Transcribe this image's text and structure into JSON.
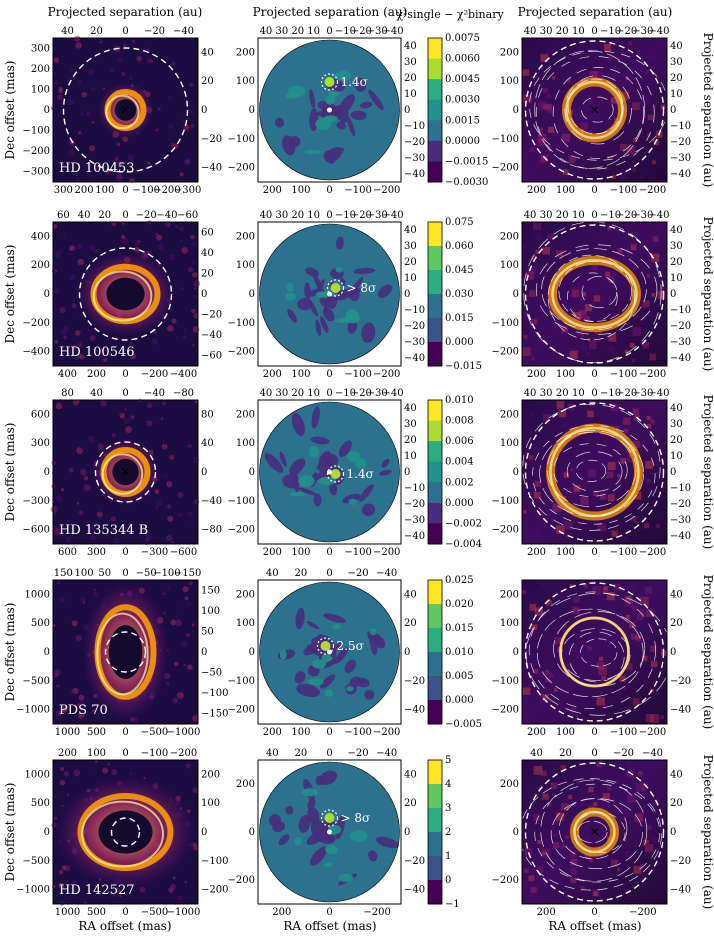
{
  "column_headers": {
    "left": "Projected separation (au)",
    "middle": "Projected separation (au)",
    "colorbar": "χ²single − χ²binary"
  },
  "axis_labels": {
    "dec": "Dec offset (mas)",
    "ra": "RA offset (mas)",
    "right_sep": "Projected separation (au)"
  },
  "palette": {
    "viridis": [
      "#440154",
      "#472d7b",
      "#3b528b",
      "#2c728e",
      "#21918c",
      "#28ae80",
      "#5ec962",
      "#addc30",
      "#fde725"
    ],
    "inferno": [
      "#000004",
      "#1b0c41",
      "#4a0c6b",
      "#781c6d",
      "#a52c60",
      "#cf4446",
      "#ed6925",
      "#fb9b06",
      "#f7d13d",
      "#fcffa4"
    ]
  },
  "rows": [
    {
      "object": "HD 100453",
      "significance": "1.4σ",
      "left_bottom_ticks": [
        "300",
        "200",
        "100",
        "0",
        "−100",
        "−200",
        "−300"
      ],
      "left_left_ticks": [
        "300",
        "200",
        "100",
        "0",
        "−100",
        "−200",
        "−300"
      ],
      "left_top_ticks": [
        "40",
        "20",
        "0",
        "−20",
        "−40"
      ],
      "left_right_ticks": [
        "40",
        "20",
        "0",
        "−20",
        "−40"
      ],
      "mid_left_ticks": [
        "200",
        "100",
        "0",
        "−100",
        "−200"
      ],
      "mid_bottom_ticks": [
        "200",
        "100",
        "0",
        "−100",
        "−200"
      ],
      "mid_top_ticks": [
        "40",
        "30",
        "20",
        "10",
        "0",
        "−10",
        "−20",
        "−30",
        "−40"
      ],
      "mid_right_ticks": [
        "40",
        "30",
        "20",
        "10",
        "0",
        "−10",
        "−20",
        "−30",
        "−40"
      ],
      "cbar_ticks": [
        "0.0075",
        "0.0060",
        "0.0045",
        "0.0030",
        "0.0015",
        "0.0000",
        "−0.0015",
        "−0.0030"
      ],
      "right_left_ticks": [
        "200",
        "100",
        "0",
        "−100",
        "−200"
      ],
      "right_bottom_ticks": [
        "200",
        "100",
        "0",
        "−100",
        "−200"
      ],
      "right_top_ticks": [
        "40",
        "30",
        "20",
        "10",
        "0",
        "−10",
        "−20",
        "−30",
        "−40"
      ]
    },
    {
      "object": "HD 100546",
      "significance": "> 8σ",
      "left_bottom_ticks": [
        "400",
        "200",
        "0",
        "−200",
        "−400"
      ],
      "left_left_ticks": [
        "400",
        "200",
        "0",
        "−200",
        "−400"
      ],
      "left_top_ticks": [
        "60",
        "40",
        "20",
        "0",
        "−20",
        "−40",
        "−60"
      ],
      "left_right_ticks": [
        "60",
        "40",
        "20",
        "0",
        "−20",
        "−40",
        "−60"
      ],
      "mid_left_ticks": [
        "200",
        "100",
        "0",
        "−100",
        "−200"
      ],
      "mid_bottom_ticks": [
        "200",
        "100",
        "0",
        "−100",
        "−200"
      ],
      "mid_top_ticks": [
        "40",
        "30",
        "20",
        "10",
        "0",
        "−10",
        "−20",
        "−30",
        "−40"
      ],
      "mid_right_ticks": [
        "40",
        "30",
        "20",
        "10",
        "0",
        "−10",
        "−20",
        "−30",
        "−40"
      ],
      "cbar_ticks": [
        "0.075",
        "0.060",
        "0.045",
        "0.030",
        "0.015",
        "0.000",
        "−0.015"
      ],
      "right_left_ticks": [
        "200",
        "100",
        "0",
        "−100",
        "−200"
      ],
      "right_bottom_ticks": [
        "200",
        "100",
        "0",
        "−100",
        "−200"
      ],
      "right_top_ticks": [
        "40",
        "30",
        "20",
        "10",
        "0",
        "−10",
        "−20",
        "−30",
        "−40"
      ]
    },
    {
      "object": "HD 135344 B",
      "significance": "1.4σ",
      "left_bottom_ticks": [
        "600",
        "300",
        "0",
        "−300",
        "−600"
      ],
      "left_left_ticks": [
        "600",
        "300",
        "0",
        "−300",
        "−600"
      ],
      "left_top_ticks": [
        "80",
        "40",
        "0",
        "−40",
        "−80"
      ],
      "left_right_ticks": [
        "80",
        "40",
        "0",
        "−40",
        "−80"
      ],
      "mid_left_ticks": [
        "200",
        "100",
        "0",
        "−100",
        "−200"
      ],
      "mid_bottom_ticks": [
        "200",
        "100",
        "0",
        "−100",
        "−200"
      ],
      "mid_top_ticks": [
        "40",
        "30",
        "20",
        "10",
        "0",
        "−10",
        "−20",
        "−30",
        "−40"
      ],
      "mid_right_ticks": [
        "40",
        "30",
        "20",
        "10",
        "0",
        "−10",
        "−20",
        "−30",
        "−40"
      ],
      "cbar_ticks": [
        "0.010",
        "0.008",
        "0.006",
        "0.004",
        "0.002",
        "0.000",
        "−0.002",
        "−0.004"
      ],
      "right_left_ticks": [
        "200",
        "100",
        "0",
        "−100",
        "−200"
      ],
      "right_bottom_ticks": [
        "200",
        "100",
        "0",
        "−100",
        "−200"
      ],
      "right_top_ticks": [
        "40",
        "30",
        "20",
        "10",
        "0",
        "−10",
        "−20",
        "−30",
        "−40"
      ]
    },
    {
      "object": "PDS 70",
      "significance": "2.5σ",
      "left_bottom_ticks": [
        "1000",
        "500",
        "0",
        "−500",
        "−1000"
      ],
      "left_left_ticks": [
        "1000",
        "500",
        "0",
        "−500",
        "−1000"
      ],
      "left_top_ticks": [
        "150",
        "100",
        "50",
        "0",
        "−50",
        "−100",
        "−150"
      ],
      "left_right_ticks": [
        "150",
        "100",
        "50",
        "0",
        "−50",
        "−100",
        "−150"
      ],
      "mid_left_ticks": [
        "200",
        "100",
        "0",
        "−100",
        "−200"
      ],
      "mid_bottom_ticks": [
        "200",
        "100",
        "0",
        "−100",
        "−200"
      ],
      "mid_top_ticks": [
        "40",
        "20",
        "0",
        "−20",
        "−40"
      ],
      "mid_right_ticks": [
        "40",
        "20",
        "0",
        "−20",
        "−40"
      ],
      "cbar_ticks": [
        "0.025",
        "0.020",
        "0.015",
        "0.010",
        "0.005",
        "0.000",
        "−0.005"
      ],
      "right_left_ticks": [
        "200",
        "100",
        "0",
        "−100",
        "−200"
      ],
      "right_bottom_ticks": [
        "200",
        "100",
        "0",
        "−100",
        "−200"
      ],
      "right_top_ticks": []
    },
    {
      "object": "HD 142527",
      "significance": "> 8σ",
      "left_bottom_ticks": [
        "1000",
        "500",
        "0",
        "−500",
        "−1000"
      ],
      "left_left_ticks": [
        "1000",
        "500",
        "0",
        "−500",
        "−1000"
      ],
      "left_top_ticks": [
        "200",
        "100",
        "0",
        "−100",
        "−200"
      ],
      "left_right_ticks": [
        "200",
        "100",
        "0",
        "−100",
        "−200"
      ],
      "mid_left_ticks": [
        "200",
        "0",
        "−200"
      ],
      "mid_bottom_ticks": [
        "200",
        "0",
        "−200"
      ],
      "mid_top_ticks": [
        "40",
        "20",
        "0",
        "−20",
        "−40"
      ],
      "mid_right_ticks": [
        "40",
        "20",
        "0",
        "−20",
        "−40"
      ],
      "cbar_ticks": [
        "5",
        "4",
        "3",
        "2",
        "1",
        "0",
        "−1"
      ],
      "right_left_ticks": [
        "200",
        "0",
        "−200"
      ],
      "right_bottom_ticks": [
        "200",
        "0",
        "−200"
      ],
      "right_top_ticks": [
        "40",
        "20",
        "0",
        "−20",
        "−40"
      ]
    }
  ]
}
